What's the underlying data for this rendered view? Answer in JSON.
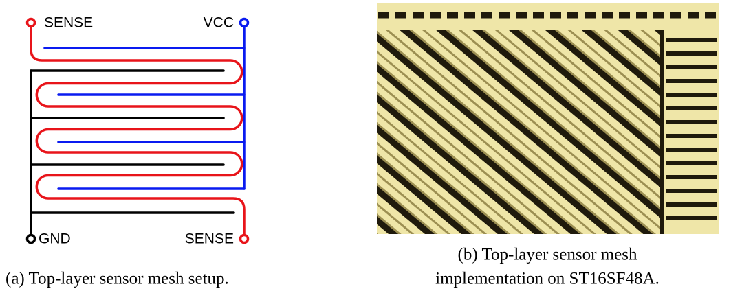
{
  "panel_a": {
    "labels": {
      "sense_top": "SENSE",
      "vcc": "VCC",
      "gnd": "GND",
      "sense_bottom": "SENSE"
    },
    "caption": "(a) Top-layer sensor mesh setup."
  },
  "panel_b": {
    "caption_lines": [
      "(b) Top-layer sensor mesh",
      "implementation on ST16SF48A."
    ]
  }
}
